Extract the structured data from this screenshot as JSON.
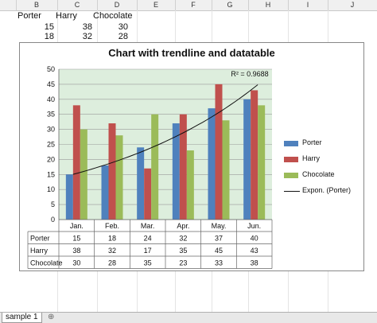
{
  "columns": [
    "B",
    "C",
    "D",
    "E",
    "F",
    "G",
    "H",
    "I",
    "J"
  ],
  "cells": {
    "r1": [
      "Porter",
      "Harry",
      "Chocolate"
    ],
    "r2": [
      "15",
      "38",
      "30"
    ],
    "r3": [
      "18",
      "32",
      "28"
    ]
  },
  "sheet_tab": "sample 1",
  "chart_data": {
    "type": "bar",
    "title": "Chart with trendline and datatable",
    "categories": [
      "Jan.",
      "Feb.",
      "Mar.",
      "Apr.",
      "May.",
      "Jun."
    ],
    "series": [
      {
        "name": "Porter",
        "values": [
          15,
          18,
          24,
          32,
          37,
          40
        ],
        "color": "#4f81bd"
      },
      {
        "name": "Harry",
        "values": [
          38,
          32,
          17,
          35,
          45,
          43
        ],
        "color": "#c0504d"
      },
      {
        "name": "Chocolate",
        "values": [
          30,
          28,
          35,
          23,
          33,
          38
        ],
        "color": "#9bbb59"
      }
    ],
    "trendline": {
      "name": "Expon. (Porter)",
      "type": "exponential",
      "r2_label": "R² = 0.9688"
    },
    "ylim": [
      0,
      50
    ],
    "yticks": [
      "0",
      "5",
      "10",
      "15",
      "20",
      "25",
      "30",
      "35",
      "40",
      "45",
      "50"
    ],
    "grid": true,
    "plot_background": "#ddeedd",
    "legend_position": "right",
    "data_table": true
  }
}
